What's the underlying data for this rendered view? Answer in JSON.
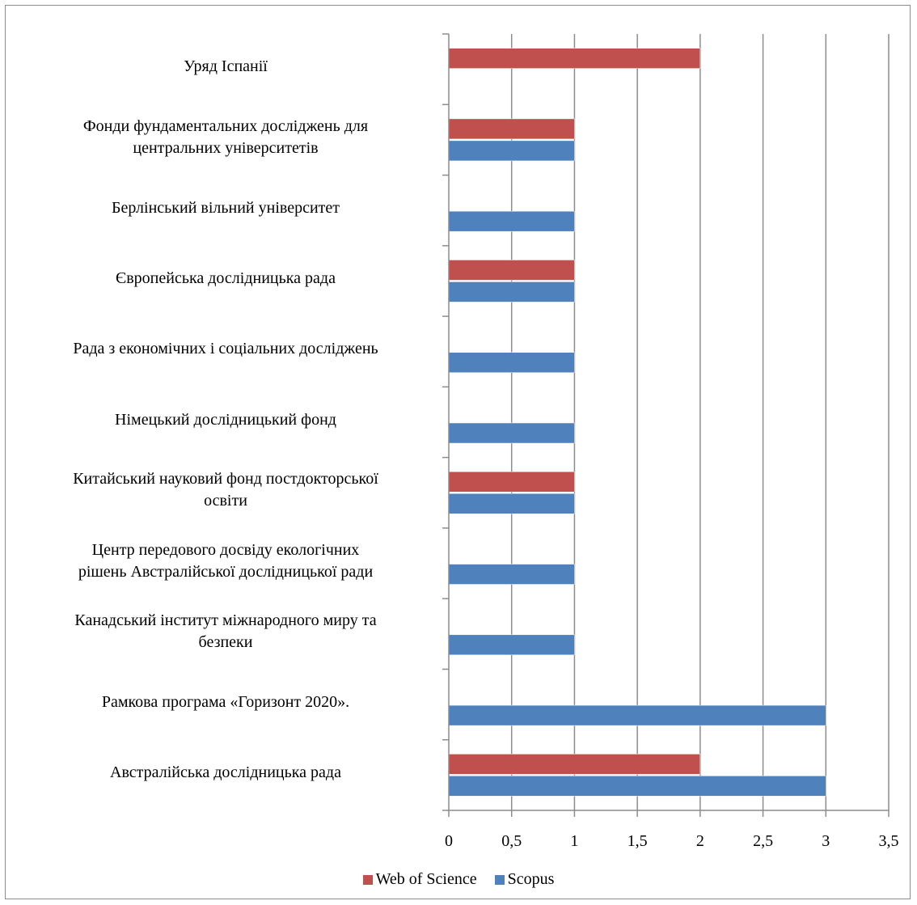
{
  "chart_data": {
    "type": "bar",
    "orientation": "horizontal",
    "categories": [
      "Уряд Іспанії",
      "Фонди фундаментальних досліджень для центральних університетів",
      "Берлінський вільний університет",
      "Європейська дослідницька рада",
      "Рада з економічних і соціальних досліджень",
      "Німецький дослідницький фонд",
      "Китайський науковий фонд постдокторської освіти",
      "Центр передового досвіду екологічних рішень Австралійської дослідницької ради",
      "Канадський інститут міжнародного миру та безпеки",
      "Рамкова програма «Горизонт 2020».",
      "Австралійська дослідницька рада"
    ],
    "category_lines": [
      [
        "Уряд Іспанії"
      ],
      [
        "Фонди фундаментальних досліджень для",
        "центральних університетів"
      ],
      [
        "Берлінський вільний університет"
      ],
      [
        "Європейська дослідницька рада"
      ],
      [
        "Рада з економічних і соціальних досліджень"
      ],
      [
        "Німецький дослідницький фонд"
      ],
      [
        "Китайський науковий фонд постдокторської",
        "освіти"
      ],
      [
        "Центр передового досвіду екологічних",
        "рішень Австралійської дослідницької ради"
      ],
      [
        "Канадський інститут міжнародного миру та",
        "безпеки"
      ],
      [
        "Рамкова програма «Горизонт 2020»."
      ],
      [
        "Австралійська дослідницька рада"
      ]
    ],
    "series": [
      {
        "name": "Web of Science",
        "color": "#c0504d",
        "values": [
          2,
          1,
          0,
          1,
          0,
          0,
          1,
          0,
          0,
          0,
          2
        ]
      },
      {
        "name": "Scopus",
        "color": "#4f81bd",
        "values": [
          0,
          1,
          1,
          1,
          1,
          1,
          1,
          1,
          1,
          3,
          3
        ]
      }
    ],
    "xlim": [
      0,
      3.5
    ],
    "xticks": [
      "0",
      "0,5",
      "1",
      "1,5",
      "2",
      "2,5",
      "3",
      "3,5"
    ],
    "grid": "vertical",
    "legend": "bottom",
    "title": "",
    "xlabel": "",
    "ylabel": ""
  },
  "legend": {
    "wos_label": "Web of Science",
    "scopus_label": "Scopus"
  }
}
